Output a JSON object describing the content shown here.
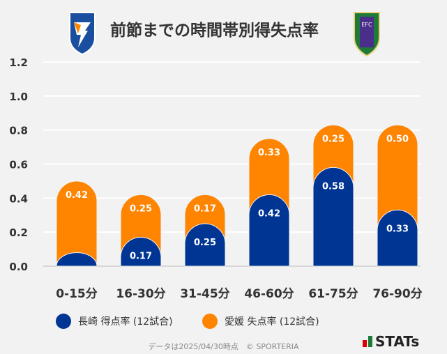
{
  "title": "前節までの時間帯別得失点率",
  "logos": {
    "home": "V-VAREN",
    "away": "EFC"
  },
  "chart_data": {
    "type": "bar",
    "stacked": true,
    "categories": [
      "0-15分",
      "16-30分",
      "31-45分",
      "46-60分",
      "61-75分",
      "76-90分"
    ],
    "series": [
      {
        "name": "長崎 得点率 (12試合)",
        "color": "#003594",
        "values": [
          0.08,
          0.17,
          0.25,
          0.42,
          0.58,
          0.33
        ],
        "labels": [
          "",
          "0.17",
          "0.25",
          "0.42",
          "0.58",
          "0.33"
        ]
      },
      {
        "name": "愛媛 失点率 (12試合)",
        "color": "#ff8400",
        "values": [
          0.42,
          0.25,
          0.17,
          0.33,
          0.25,
          0.5
        ],
        "labels": [
          "0.42",
          "0.25",
          "0.17",
          "0.33",
          "0.25",
          "0.50"
        ]
      }
    ],
    "ylim": [
      0,
      1.2
    ],
    "yticks": [
      "0.0",
      "0.2",
      "0.4",
      "0.6",
      "0.8",
      "1.0",
      "1.2"
    ],
    "grid": true,
    "legend": "bottom"
  },
  "footer": "データは2025/04/30時点　© SPORTERIA",
  "brand": "STATs"
}
